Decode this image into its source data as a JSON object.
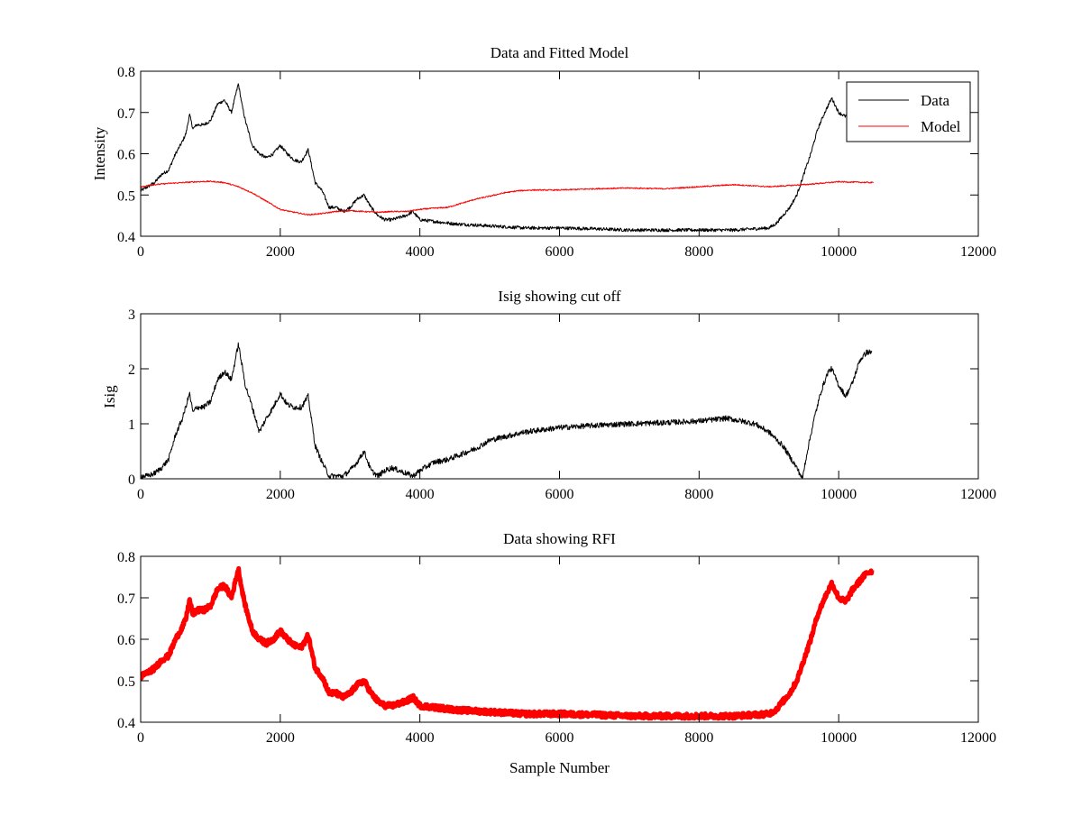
{
  "chart_data": [
    {
      "type": "line",
      "title": "Data and Fitted Model",
      "xlabel": "",
      "ylabel": "Intensity",
      "xlim": [
        0,
        12000
      ],
      "ylim": [
        0.4,
        0.8
      ],
      "xticks": [
        0,
        2000,
        4000,
        6000,
        8000,
        10000,
        12000
      ],
      "yticks": [
        0.4,
        0.5,
        0.6,
        0.7,
        0.8
      ],
      "xtick_labels": [
        "0",
        "2000",
        "4000",
        "6000",
        "8000",
        "10000",
        "12000"
      ],
      "ytick_labels": [
        "0.4",
        "0.5",
        "0.6",
        "0.7",
        "0.8"
      ],
      "legend_position": "top-right",
      "grid": false,
      "series": [
        {
          "name": "Data",
          "color": "#000000",
          "noise": 0.004,
          "x": [
            0,
            100,
            200,
            300,
            400,
            500,
            600,
            650,
            700,
            750,
            800,
            900,
            1000,
            1100,
            1200,
            1300,
            1400,
            1450,
            1500,
            1600,
            1700,
            1800,
            1900,
            2000,
            2100,
            2200,
            2300,
            2400,
            2500,
            2600,
            2700,
            2800,
            2900,
            3000,
            3100,
            3200,
            3300,
            3400,
            3500,
            3600,
            3700,
            3800,
            3900,
            4000,
            4500,
            5000,
            5500,
            6000,
            6500,
            7000,
            7500,
            8000,
            8500,
            9000,
            9100,
            9200,
            9300,
            9400,
            9500,
            9600,
            9700,
            9800,
            9900,
            10000,
            10100,
            10200,
            10300,
            10400,
            10480
          ],
          "y": [
            0.51,
            0.52,
            0.53,
            0.55,
            0.56,
            0.6,
            0.63,
            0.65,
            0.695,
            0.66,
            0.67,
            0.67,
            0.68,
            0.72,
            0.73,
            0.7,
            0.77,
            0.72,
            0.68,
            0.62,
            0.6,
            0.59,
            0.6,
            0.62,
            0.6,
            0.585,
            0.58,
            0.61,
            0.53,
            0.51,
            0.47,
            0.47,
            0.46,
            0.47,
            0.49,
            0.5,
            0.47,
            0.45,
            0.44,
            0.44,
            0.445,
            0.45,
            0.46,
            0.44,
            0.43,
            0.425,
            0.42,
            0.42,
            0.418,
            0.415,
            0.415,
            0.415,
            0.415,
            0.42,
            0.43,
            0.45,
            0.47,
            0.5,
            0.55,
            0.6,
            0.66,
            0.7,
            0.735,
            0.7,
            0.69,
            0.72,
            0.74,
            0.76,
            0.765
          ]
        },
        {
          "name": "Model",
          "color": "#ff0000",
          "noise": 0.0015,
          "x": [
            0,
            200,
            400,
            600,
            800,
            1000,
            1200,
            1400,
            1600,
            1800,
            2000,
            2200,
            2400,
            2600,
            2800,
            3000,
            3200,
            3400,
            3600,
            3800,
            4000,
            4200,
            4400,
            4600,
            4800,
            5000,
            5200,
            5400,
            5600,
            5800,
            6000,
            6500,
            7000,
            7500,
            8000,
            8500,
            9000,
            9500,
            10000,
            10500
          ],
          "y": [
            0.52,
            0.525,
            0.528,
            0.53,
            0.532,
            0.533,
            0.53,
            0.52,
            0.505,
            0.485,
            0.465,
            0.458,
            0.452,
            0.455,
            0.46,
            0.462,
            0.46,
            0.458,
            0.46,
            0.46,
            0.465,
            0.468,
            0.47,
            0.48,
            0.49,
            0.497,
            0.505,
            0.51,
            0.512,
            0.512,
            0.512,
            0.515,
            0.517,
            0.515,
            0.52,
            0.525,
            0.52,
            0.525,
            0.532,
            0.53
          ]
        }
      ]
    },
    {
      "type": "line",
      "title": "Isig showing cut off",
      "xlabel": "",
      "ylabel": "Isig",
      "xlim": [
        0,
        12000
      ],
      "ylim": [
        0,
        3
      ],
      "xticks": [
        0,
        2000,
        4000,
        6000,
        8000,
        10000,
        12000
      ],
      "yticks": [
        0,
        1,
        2,
        3
      ],
      "xtick_labels": [
        "0",
        "2000",
        "4000",
        "6000",
        "8000",
        "10000",
        "12000"
      ],
      "ytick_labels": [
        "0",
        "1",
        "2",
        "3"
      ],
      "grid": false,
      "series": [
        {
          "name": "",
          "color": "#000000",
          "noise": 0.05,
          "x": [
            0,
            100,
            200,
            300,
            400,
            500,
            600,
            700,
            750,
            800,
            900,
            1000,
            1100,
            1200,
            1300,
            1400,
            1500,
            1600,
            1700,
            1800,
            1900,
            2000,
            2100,
            2200,
            2300,
            2400,
            2500,
            2600,
            2700,
            2800,
            2900,
            3000,
            3100,
            3200,
            3300,
            3400,
            3500,
            3600,
            3700,
            3800,
            3900,
            4000,
            4200,
            4400,
            4600,
            4800,
            5000,
            5500,
            6000,
            6500,
            7000,
            7500,
            8000,
            8400,
            8800,
            9000,
            9200,
            9400,
            9480,
            9550,
            9650,
            9750,
            9850,
            9900,
            10000,
            10100,
            10200,
            10300,
            10400,
            10480
          ],
          "y": [
            0.05,
            0.05,
            0.1,
            0.2,
            0.35,
            0.8,
            1.1,
            1.55,
            1.2,
            1.3,
            1.3,
            1.4,
            1.8,
            1.95,
            1.8,
            2.45,
            1.7,
            1.3,
            0.85,
            1.1,
            1.3,
            1.55,
            1.35,
            1.3,
            1.3,
            1.5,
            0.6,
            0.3,
            0.05,
            0.05,
            0.05,
            0.15,
            0.3,
            0.5,
            0.15,
            0.05,
            0.15,
            0.2,
            0.15,
            0.1,
            0.05,
            0.15,
            0.3,
            0.35,
            0.45,
            0.55,
            0.7,
            0.85,
            0.93,
            0.97,
            1.0,
            1.02,
            1.05,
            1.1,
            1.0,
            0.85,
            0.6,
            0.2,
            0.0,
            0.5,
            1.1,
            1.6,
            1.95,
            2.0,
            1.7,
            1.5,
            1.75,
            2.15,
            2.3,
            2.3
          ]
        }
      ]
    },
    {
      "type": "line",
      "title": "Data showing RFI",
      "xlabel": "Sample Number",
      "ylabel": "",
      "xlim": [
        0,
        12000
      ],
      "ylim": [
        0.4,
        0.8
      ],
      "xticks": [
        0,
        2000,
        4000,
        6000,
        8000,
        10000,
        12000
      ],
      "yticks": [
        0.4,
        0.5,
        0.6,
        0.7,
        0.8
      ],
      "xtick_labels": [
        "0",
        "2000",
        "4000",
        "6000",
        "8000",
        "10000",
        "12000"
      ],
      "ytick_labels": [
        "0.4",
        "0.5",
        "0.6",
        "0.7",
        "0.8"
      ],
      "grid": false,
      "series": [
        {
          "name": "",
          "color": "#ff0000",
          "noise": 0.006,
          "x": [
            0,
            100,
            200,
            300,
            400,
            500,
            600,
            650,
            700,
            750,
            800,
            900,
            1000,
            1100,
            1200,
            1300,
            1400,
            1450,
            1500,
            1600,
            1700,
            1800,
            1900,
            2000,
            2100,
            2200,
            2300,
            2400,
            2500,
            2600,
            2700,
            2800,
            2900,
            3000,
            3100,
            3200,
            3300,
            3400,
            3500,
            3600,
            3700,
            3800,
            3900,
            4000,
            4500,
            5000,
            5500,
            6000,
            6500,
            7000,
            7500,
            8000,
            8500,
            9000,
            9100,
            9200,
            9300,
            9400,
            9500,
            9600,
            9700,
            9800,
            9900,
            10000,
            10100,
            10200,
            10300,
            10400,
            10480
          ],
          "y": [
            0.51,
            0.52,
            0.53,
            0.55,
            0.56,
            0.6,
            0.63,
            0.65,
            0.695,
            0.66,
            0.67,
            0.67,
            0.68,
            0.72,
            0.73,
            0.7,
            0.77,
            0.72,
            0.68,
            0.62,
            0.6,
            0.59,
            0.6,
            0.62,
            0.6,
            0.585,
            0.58,
            0.61,
            0.53,
            0.51,
            0.47,
            0.47,
            0.46,
            0.47,
            0.49,
            0.5,
            0.47,
            0.45,
            0.44,
            0.44,
            0.445,
            0.45,
            0.46,
            0.44,
            0.43,
            0.425,
            0.42,
            0.42,
            0.418,
            0.415,
            0.415,
            0.415,
            0.415,
            0.42,
            0.43,
            0.45,
            0.47,
            0.5,
            0.55,
            0.6,
            0.66,
            0.7,
            0.735,
            0.7,
            0.69,
            0.72,
            0.74,
            0.76,
            0.765
          ]
        }
      ]
    }
  ]
}
